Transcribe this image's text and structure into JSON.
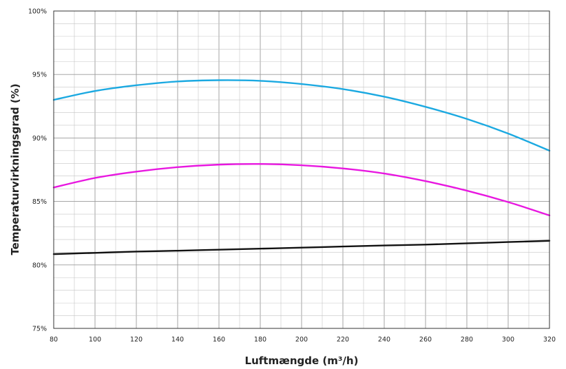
{
  "chart_data": {
    "type": "line",
    "title": "",
    "xlabel": "Luftmængde (m³/h)",
    "ylabel": "Temperaturvirkningsgrad (%)",
    "xlim": [
      80,
      320
    ],
    "ylim": [
      75,
      100
    ],
    "x_ticks": [
      80,
      100,
      120,
      140,
      160,
      180,
      200,
      220,
      240,
      260,
      280,
      300,
      320
    ],
    "y_ticks": [
      75,
      80,
      85,
      90,
      95,
      100
    ],
    "x_tick_labels": [
      "80",
      "100",
      "120",
      "140",
      "160",
      "180",
      "200",
      "220",
      "240",
      "260",
      "280",
      "300",
      "320"
    ],
    "y_tick_labels": [
      "75%",
      "80%",
      "85%",
      "90%",
      "95%",
      "100%"
    ],
    "grid": true,
    "legend": "none",
    "series": [
      {
        "color": "#1ba9e1",
        "x": [
          80,
          100,
          120,
          140,
          160,
          180,
          200,
          220,
          240,
          260,
          280,
          300,
          320
        ],
        "y": [
          93.0,
          93.7,
          94.15,
          94.45,
          94.55,
          94.5,
          94.25,
          93.85,
          93.25,
          92.45,
          91.5,
          90.35,
          89.0
        ]
      },
      {
        "color": "#e817e0",
        "x": [
          80,
          100,
          120,
          140,
          160,
          180,
          200,
          220,
          240,
          260,
          280,
          300,
          320
        ],
        "y": [
          86.1,
          86.85,
          87.35,
          87.7,
          87.9,
          87.95,
          87.85,
          87.6,
          87.2,
          86.6,
          85.85,
          84.95,
          83.9
        ]
      },
      {
        "color": "#111111",
        "x": [
          80,
          100,
          120,
          140,
          160,
          180,
          200,
          220,
          240,
          260,
          280,
          300,
          320
        ],
        "y": [
          80.85,
          80.95,
          81.05,
          81.12,
          81.2,
          81.28,
          81.36,
          81.45,
          81.53,
          81.6,
          81.7,
          81.8,
          81.9
        ]
      }
    ]
  }
}
